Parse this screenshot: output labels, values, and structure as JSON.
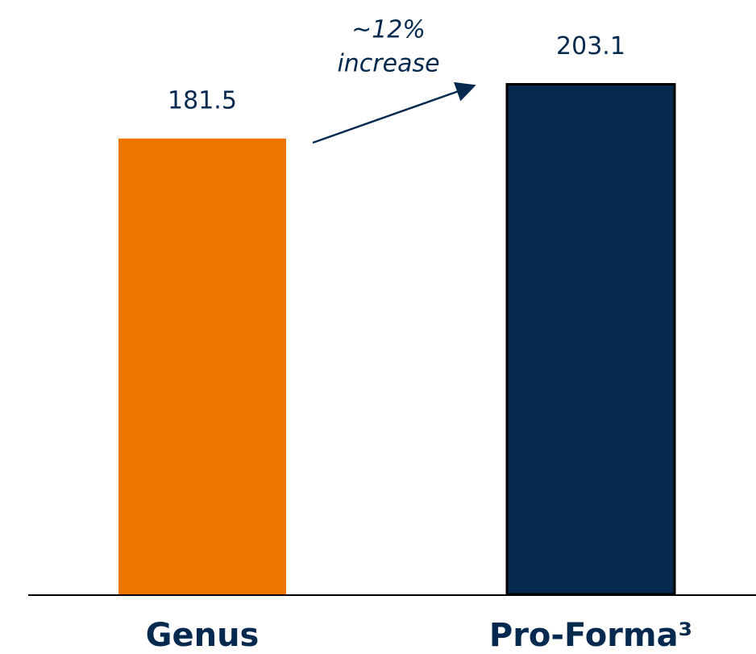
{
  "chart_data": {
    "type": "bar",
    "categories": [
      "Genus",
      "Pro-Forma³"
    ],
    "values": [
      181.5,
      203.1
    ],
    "colors": [
      "#ee7600",
      "#06294f"
    ],
    "ylim": [
      0,
      210
    ],
    "annotation": [
      "~12%",
      "increase"
    ]
  }
}
